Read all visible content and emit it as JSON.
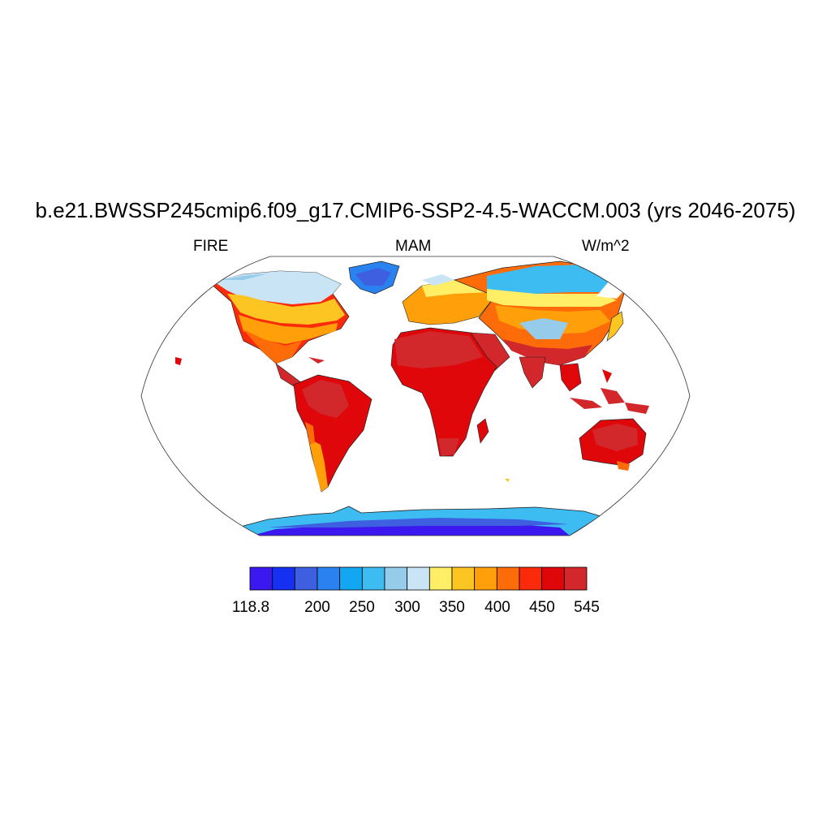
{
  "title": "b.e21.BWSSP245cmip6.f09_g17.CMIP6-SSP2-4.5-WACCM.003 (yrs 2046-2075)",
  "left_string": "FIRE",
  "center_string": "MAM",
  "right_string": "W/m^2",
  "projection": "Robinson",
  "colorbar": {
    "colors": [
      "#3c18f0",
      "#1530f0",
      "#3d5fe0",
      "#2a82f0",
      "#13a7f2",
      "#3dbcf2",
      "#96cbe9",
      "#c8e4f5",
      "#ffee66",
      "#fdc521",
      "#ff9f0a",
      "#fd6c08",
      "#fb2a0b",
      "#e0070b",
      "#d2272b"
    ],
    "labels": [
      "118.8",
      "200",
      "250",
      "300",
      "350",
      "400",
      "450",
      "545"
    ]
  }
}
